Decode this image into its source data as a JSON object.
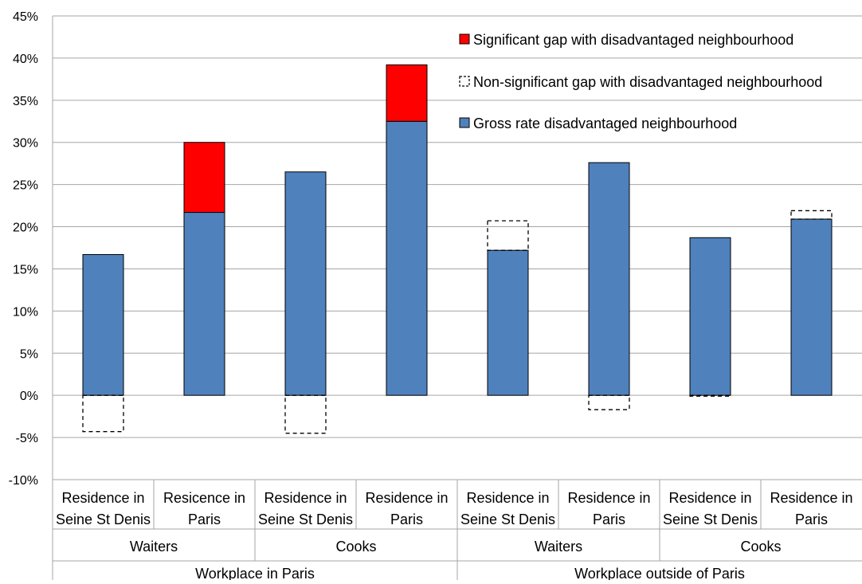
{
  "chart_data": {
    "type": "bar",
    "stacked": true,
    "ylim": [
      -0.1,
      0.45
    ],
    "y_ticks": [
      {
        "value": -0.1,
        "label": "-10%"
      },
      {
        "value": -0.05,
        "label": "-5%"
      },
      {
        "value": 0.0,
        "label": "0%"
      },
      {
        "value": 0.05,
        "label": "5%"
      },
      {
        "value": 0.1,
        "label": "10%"
      },
      {
        "value": 0.15,
        "label": "15%"
      },
      {
        "value": 0.2,
        "label": "20%"
      },
      {
        "value": 0.25,
        "label": "25%"
      },
      {
        "value": 0.3,
        "label": "30%"
      },
      {
        "value": 0.35,
        "label": "35%"
      },
      {
        "value": 0.4,
        "label": "40%"
      },
      {
        "value": 0.45,
        "label": "45%"
      }
    ],
    "grid": "horizontal",
    "legend_position": "top-right",
    "categories": [
      "Residence in Seine St Denis",
      "Resicence in Paris",
      "Residence in Seine St Denis",
      "Residence in Paris",
      "Residence in Seine St Denis",
      "Residence in Paris",
      "Residence in Seine St Denis",
      "Residence in Paris"
    ],
    "category_lines": [
      [
        "Residence in",
        "Seine St Denis"
      ],
      [
        "Resicence in",
        "Paris"
      ],
      [
        "Residence in",
        "Seine St Denis"
      ],
      [
        "Residence in",
        "Paris"
      ],
      [
        "Residence in",
        "Seine St Denis"
      ],
      [
        "Residence in",
        "Paris"
      ],
      [
        "Residence in",
        "Seine St Denis"
      ],
      [
        "Residence in",
        "Paris"
      ]
    ],
    "occupation_groups": [
      {
        "label": "Waiters",
        "span": [
          0,
          1
        ]
      },
      {
        "label": "Cooks",
        "span": [
          2,
          3
        ]
      },
      {
        "label": "Waiters",
        "span": [
          4,
          5
        ]
      },
      {
        "label": "Cooks",
        "span": [
          6,
          7
        ]
      }
    ],
    "workplace_groups": [
      {
        "label": "Workplace in Paris",
        "span": [
          0,
          3
        ]
      },
      {
        "label": "Workplace outside of Paris",
        "span": [
          4,
          7
        ]
      }
    ],
    "series": [
      {
        "name": "Gross rate disadvantaged neighbourhood",
        "color": "#4f81bd",
        "style": "solid",
        "values": [
          0.167,
          0.217,
          0.265,
          0.325,
          0.172,
          0.276,
          0.187,
          0.209
        ]
      },
      {
        "name": "Significant gap with disadvantaged neighbourhood",
        "color": "#ff0000",
        "style": "solid",
        "values": [
          0,
          0.083,
          0,
          0.067,
          0,
          0,
          0,
          0
        ]
      },
      {
        "name": "Non-significant gap with disadvantaged neighbourhood",
        "color": "#ffffff",
        "style": "dashed",
        "values": [
          -0.043,
          0,
          -0.045,
          0,
          0.035,
          -0.017,
          -0.001,
          0.01
        ]
      }
    ],
    "legend_order": [
      "Significant gap with disadvantaged neighbourhood",
      "Non-significant gap with disadvantaged neighbourhood",
      "Gross rate disadvantaged neighbourhood"
    ]
  }
}
